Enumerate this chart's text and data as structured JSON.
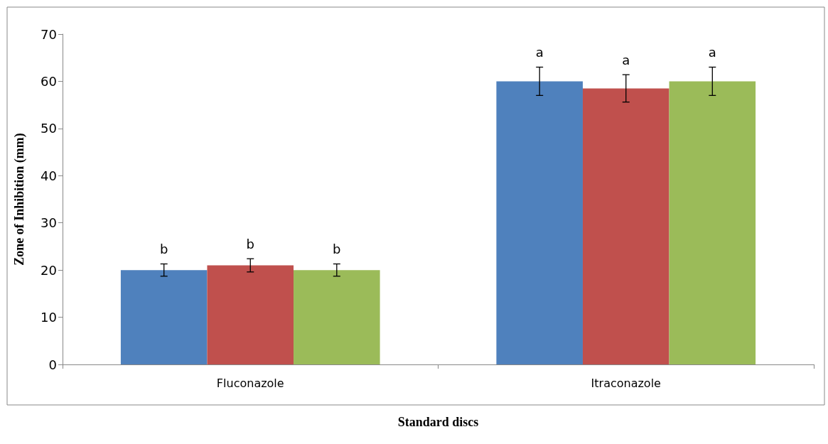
{
  "chart_data": {
    "type": "bar",
    "xlabel": "Standard discs",
    "ylabel": "Zone of Inhibition (mm)",
    "categories": [
      "Fluconazole",
      "Itraconazole"
    ],
    "series": [
      {
        "color": "#4f81bd",
        "values": [
          20,
          60
        ],
        "errors": [
          1.3,
          3
        ]
      },
      {
        "color": "#c0504d",
        "values": [
          21,
          58.5
        ],
        "errors": [
          1.4,
          2.9
        ]
      },
      {
        "color": "#9bbb59",
        "values": [
          20,
          60
        ],
        "errors": [
          1.3,
          3
        ]
      }
    ],
    "annotations": [
      "b",
      "b",
      "b",
      "a",
      "a",
      "a"
    ],
    "ylim": [
      0,
      70
    ],
    "yticks": [
      0,
      10,
      20,
      30,
      40,
      50,
      60,
      70
    ],
    "grid": false
  }
}
